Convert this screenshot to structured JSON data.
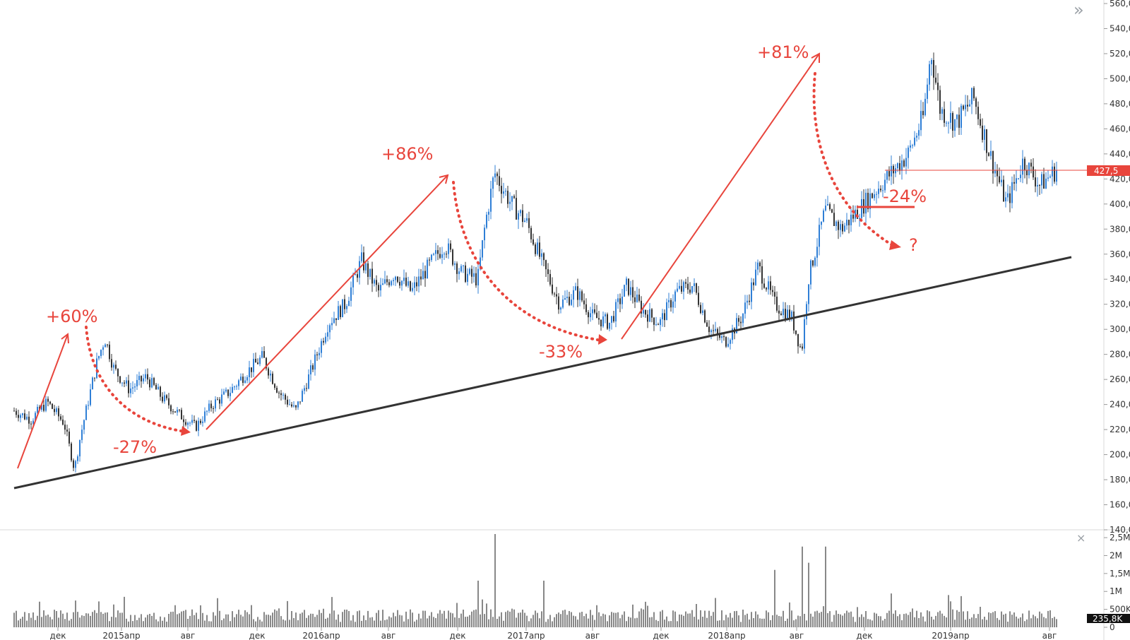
{
  "chart_data": [
    {
      "type": "candlestick",
      "panel": "price",
      "y_ticks": [
        "140,0",
        "160,0",
        "180,0",
        "200,0",
        "220,0",
        "240,0",
        "260,0",
        "280,0",
        "300,0",
        "320,0",
        "340,0",
        "360,0",
        "380,0",
        "400,0",
        "420,0",
        "440,0",
        "460,0",
        "480,0",
        "500,0",
        "520,0",
        "540,0",
        "560,0"
      ],
      "y_tick_values": [
        140,
        160,
        180,
        200,
        220,
        240,
        260,
        280,
        300,
        320,
        340,
        360,
        380,
        400,
        420,
        440,
        460,
        480,
        500,
        520,
        540,
        560
      ],
      "ylim": [
        140,
        565
      ],
      "x_ticks": [
        "дек",
        "2015апр",
        "авг",
        "дек",
        "2016апр",
        "авг",
        "дек",
        "2017апр",
        "авг",
        "дек",
        "2018апр",
        "авг",
        "дек",
        "2019апр",
        "авг"
      ],
      "last_price": 427.5,
      "last_price_label": "427,5",
      "price_path": [
        [
          "2014-08",
          235
        ],
        [
          "2014-09",
          228
        ],
        [
          "2014-10",
          242
        ],
        [
          "2014-11",
          225
        ],
        [
          "2014-11-20",
          188
        ],
        [
          "2014-12",
          215
        ],
        [
          "2015-01",
          275
        ],
        [
          "2015-01-15",
          293
        ],
        [
          "2015-02",
          268
        ],
        [
          "2015-03",
          252
        ],
        [
          "2015-04",
          262
        ],
        [
          "2015-05",
          245
        ],
        [
          "2015-06",
          232
        ],
        [
          "2015-07",
          222
        ],
        [
          "2015-08",
          240
        ],
        [
          "2015-09",
          250
        ],
        [
          "2015-10",
          265
        ],
        [
          "2015-11",
          278
        ],
        [
          "2015-12",
          250
        ],
        [
          "2016-01",
          235
        ],
        [
          "2016-02",
          270
        ],
        [
          "2016-03",
          305
        ],
        [
          "2016-04",
          320
        ],
        [
          "2016-05",
          355
        ],
        [
          "2016-06",
          330
        ],
        [
          "2016-07",
          345
        ],
        [
          "2016-08",
          330
        ],
        [
          "2016-09",
          350
        ],
        [
          "2016-10",
          368
        ],
        [
          "2016-11",
          345
        ],
        [
          "2016-12",
          340
        ],
        [
          "2016-12-15",
          385
        ],
        [
          "2017-01",
          425
        ],
        [
          "2017-02",
          400
        ],
        [
          "2017-03",
          385
        ],
        [
          "2017-04",
          350
        ],
        [
          "2017-05",
          320
        ],
        [
          "2017-06",
          330
        ],
        [
          "2017-07",
          310
        ],
        [
          "2017-08",
          305
        ],
        [
          "2017-09",
          335
        ],
        [
          "2017-10",
          315
        ],
        [
          "2017-11",
          305
        ],
        [
          "2017-12",
          330
        ],
        [
          "2018-01",
          335
        ],
        [
          "2018-02",
          300
        ],
        [
          "2018-03",
          290
        ],
        [
          "2018-04",
          310
        ],
        [
          "2018-05",
          350
        ],
        [
          "2018-06",
          320
        ],
        [
          "2018-07",
          310
        ],
        [
          "2018-07-20",
          282
        ],
        [
          "2018-08",
          340
        ],
        [
          "2018-09",
          395
        ],
        [
          "2018-10",
          380
        ],
        [
          "2018-11",
          395
        ],
        [
          "2018-12",
          410
        ],
        [
          "2019-01",
          425
        ],
        [
          "2019-02",
          440
        ],
        [
          "2019-03",
          470
        ],
        [
          "2019-03-15",
          522
        ],
        [
          "2019-04",
          475
        ],
        [
          "2019-05",
          465
        ],
        [
          "2019-06",
          485
        ],
        [
          "2019-07",
          440
        ],
        [
          "2019-08",
          400
        ],
        [
          "2019-09",
          435
        ],
        [
          "2019-10",
          415
        ],
        [
          "2019-11",
          427.5
        ]
      ]
    },
    {
      "type": "bar",
      "panel": "volume",
      "y_ticks": [
        "0",
        "500K",
        "1M",
        "1,5M",
        "2M",
        "2,5M"
      ],
      "y_tick_values": [
        0,
        500000,
        1000000,
        1500000,
        2000000,
        2500000
      ],
      "ylim": [
        0,
        2600000
      ],
      "last_volume_label": "235,8K",
      "spikes": [
        [
          "2017-01",
          2700000
        ],
        [
          "2018-07-20",
          2250000
        ],
        [
          "2018-09",
          2250000
        ],
        [
          "2018-08",
          1800000
        ],
        [
          "2017-04",
          1300000
        ],
        [
          "2018-06",
          1600000
        ],
        [
          "2016-12",
          1300000
        ]
      ]
    }
  ],
  "annotations": {
    "gain_1": "+60%",
    "gain_2": "+86%",
    "gain_3": "+81%",
    "loss_1": "-27%",
    "loss_2": "-33%",
    "loss_3": "-24%",
    "question": "?"
  },
  "colors": {
    "annotation": "#e8453c",
    "candle_up": "#2f7fd6",
    "candle_down": "#333333",
    "trendline": "#333333",
    "price_tag": "#e8453c",
    "volume": "#111111"
  },
  "icons": {
    "expand": "double-chevron-right-icon",
    "close": "close-icon"
  },
  "ui": {
    "expand_glyph": "»",
    "close_glyph": "×"
  }
}
